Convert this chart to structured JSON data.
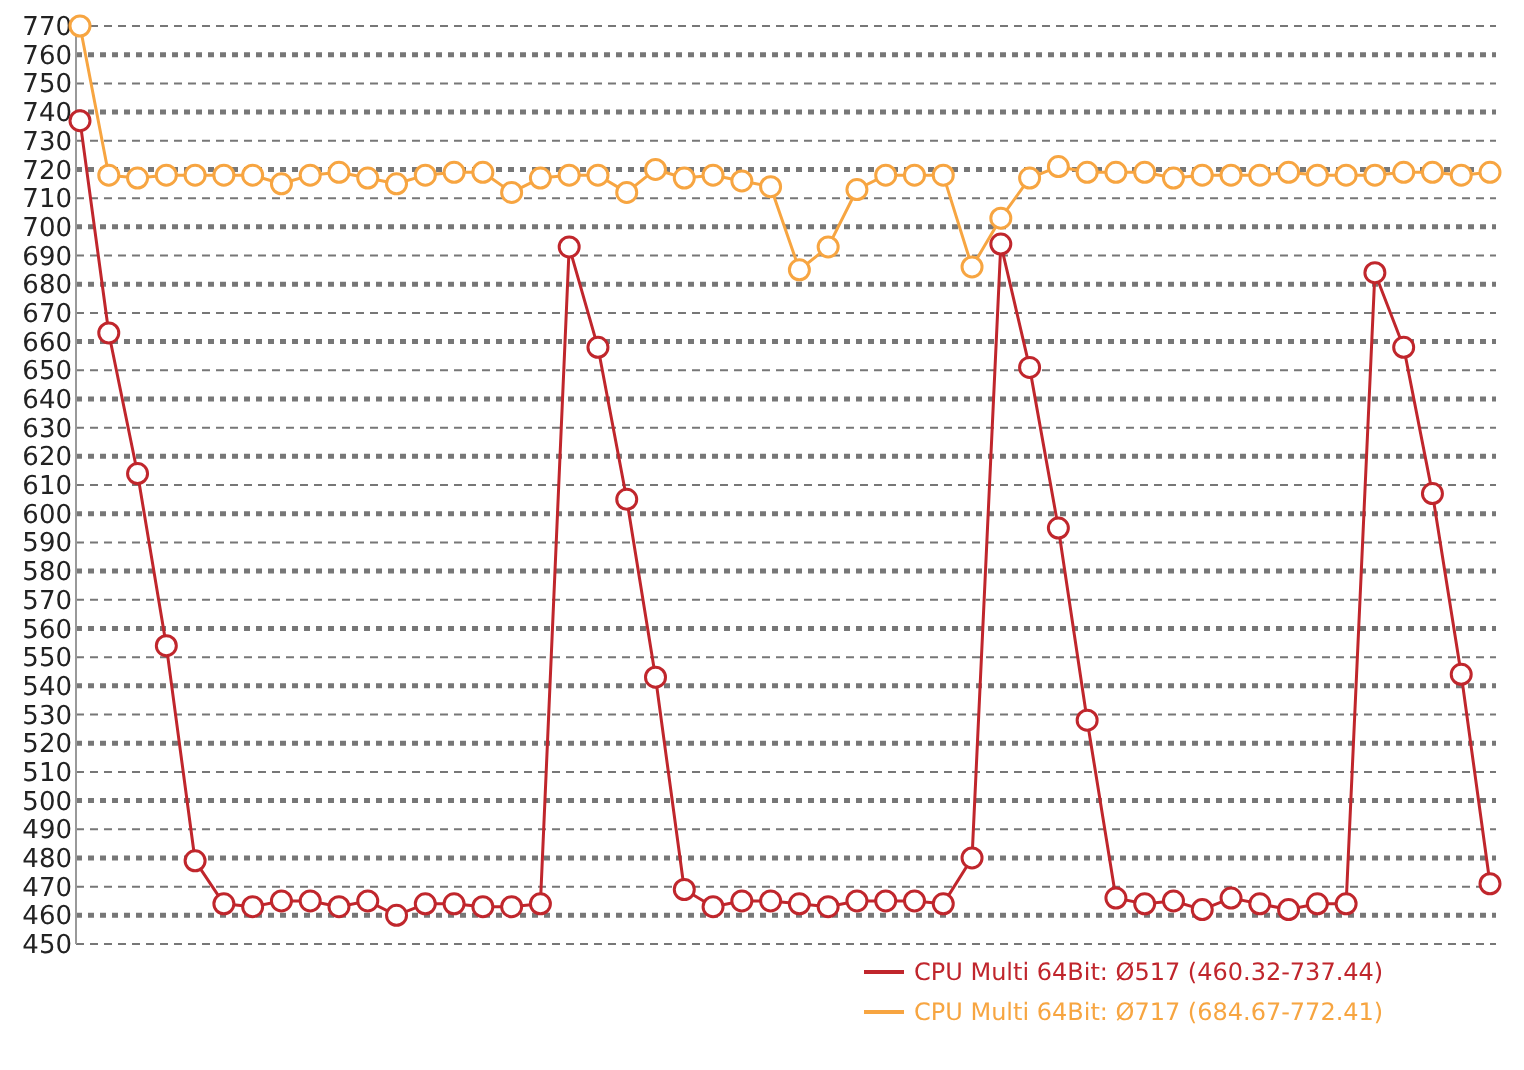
{
  "chart_data": {
    "type": "line",
    "categories": [
      null,
      null,
      null,
      null,
      null,
      null,
      null,
      null,
      null,
      null,
      null,
      null,
      null,
      null,
      null,
      null,
      null,
      null,
      null,
      null,
      null,
      null,
      null,
      null,
      null,
      null,
      null,
      null,
      null,
      null,
      null,
      null,
      null,
      null,
      null,
      null,
      null,
      null,
      null,
      null,
      null,
      null,
      null,
      null,
      null,
      null,
      null,
      null,
      null,
      null
    ],
    "series": [
      {
        "name": "CPU Multi 64Bit: Ø517 (460.32-737.44)",
        "color": "#c0262c",
        "values": [
          737,
          663,
          614,
          554,
          479,
          464,
          463,
          465,
          465,
          463,
          465,
          460,
          464,
          464,
          463,
          463,
          464,
          693,
          658,
          605,
          543,
          469,
          463,
          465,
          465,
          464,
          463,
          465,
          465,
          465,
          464,
          480,
          694,
          651,
          595,
          528,
          466,
          464,
          465,
          462,
          466,
          464,
          462,
          464,
          464,
          684,
          658,
          607,
          544,
          471
        ]
      },
      {
        "name": "CPU Multi 64Bit: Ø717 (684.67-772.41)",
        "color": "#f7a541",
        "values": [
          770,
          718,
          717,
          718,
          718,
          718,
          718,
          715,
          718,
          719,
          717,
          715,
          718,
          719,
          719,
          712,
          717,
          718,
          718,
          712,
          720,
          717,
          718,
          716,
          714,
          685,
          693,
          713,
          718,
          718,
          718,
          686,
          703,
          717,
          721,
          719,
          719,
          719,
          717,
          718,
          718,
          718,
          719,
          718,
          718,
          718,
          719,
          719,
          718,
          719
        ]
      }
    ],
    "ylim": [
      450,
      770
    ],
    "yticks": [
      450,
      460,
      470,
      480,
      490,
      500,
      510,
      520,
      530,
      540,
      550,
      560,
      570,
      580,
      590,
      600,
      610,
      620,
      630,
      640,
      650,
      660,
      670,
      680,
      690,
      700,
      710,
      720,
      730,
      740,
      750,
      760,
      770
    ],
    "grid": "y",
    "legend": "bottom",
    "marker": "circle",
    "line_style": "solid"
  }
}
